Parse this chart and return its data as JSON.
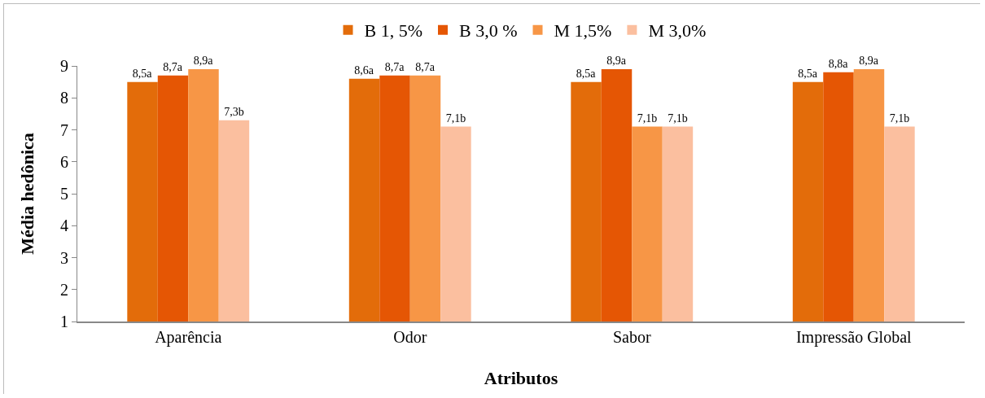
{
  "chart_data": {
    "type": "bar",
    "xlabel": "Atributos",
    "ylabel": "Média hedônica",
    "categories": [
      "Aparência",
      "Odor",
      "Sabor",
      "Impressão Global"
    ],
    "series": [
      {
        "name": "B 1, 5%",
        "color": "#e36c0a",
        "values": [
          8.5,
          8.6,
          8.5,
          8.5
        ],
        "value_labels": [
          "8,5a",
          "8,6a",
          "8,5a",
          "8,5a"
        ]
      },
      {
        "name": "B 3,0 %",
        "color": "#e55604",
        "values": [
          8.7,
          8.7,
          8.9,
          8.8
        ],
        "value_labels": [
          "8,7a",
          "8,7a",
          "8,9a",
          "8,8a"
        ]
      },
      {
        "name": "M 1,5%",
        "color": "#f79646",
        "values": [
          8.9,
          8.7,
          7.1,
          8.9
        ],
        "value_labels": [
          "8,9a",
          "8,7a",
          "7,1b",
          "8,9a"
        ]
      },
      {
        "name": "M 3,0%",
        "color": "#fbbf9f",
        "values": [
          7.3,
          7.1,
          7.1,
          7.1
        ],
        "value_labels": [
          "7,3b",
          "7,1b",
          "7,1b",
          "7,1b"
        ]
      }
    ],
    "ylim": [
      1,
      9
    ],
    "yticks": [
      1,
      2,
      3,
      4,
      5,
      6,
      7,
      8,
      9
    ],
    "grid": false,
    "legend": "top"
  }
}
